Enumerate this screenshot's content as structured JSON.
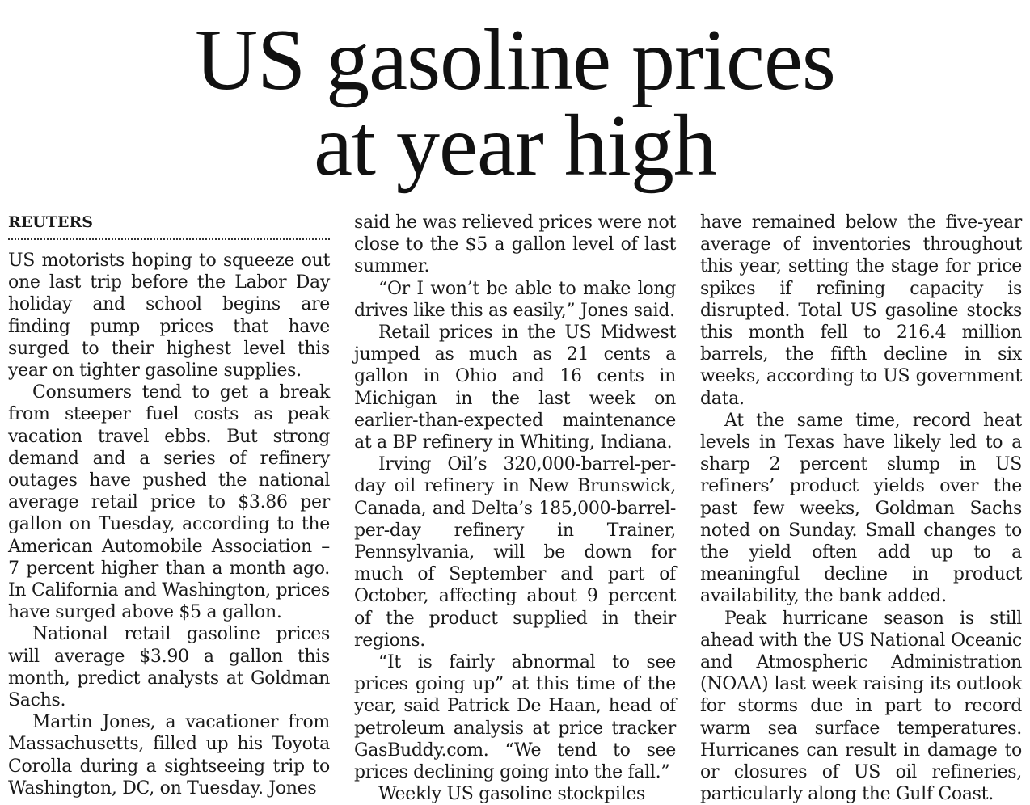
{
  "article": {
    "headline_line1": "US gasoline prices",
    "headline_line2": "at year high",
    "byline": "REUTERS",
    "col1": [
      "US motorists hoping to squeeze out one last trip before the Labor Day holiday and school begins are finding pump prices that have surged to their highest level this year on tighter gasoline supplies.",
      "Consumers tend to get a break from steeper fuel costs as peak vacation travel ebbs. But strong demand and a series of refinery outages have pushed the national average retail price to $3.86 per gallon on Tuesday, according to the American Automobile Association – 7 percent higher than a month ago. In California and Washington, prices have surged above $5 a gallon.",
      "National retail gasoline prices will average $3.90 a gallon this month, predict analysts at Goldman Sachs.",
      "Martin Jones, a vacationer from Massachusetts, filled up his Toyota Corolla during a sightseeing trip to Washington, DC, on Tuesday. Jones"
    ],
    "col2": [
      "said he was relieved prices were not close to the $5 a gallon level of last summer.",
      "“Or I won’t be able to make long drives like this as easily,” Jones said.",
      "Retail prices in the US Midwest jumped as much as 21 cents a gallon in Ohio and 16 cents in Michigan in the last week on earlier-than-expected maintenance at a BP refinery in Whiting, Indiana.",
      "Irving Oil’s 320,000-barrel-per-day oil refinery in New Brunswick, Canada, and Delta’s 185,000-barrel-per-day refinery in Trainer, Pennsylvania, will be down for much of September and part of October, affecting about 9 percent of the product supplied in their regions.",
      "“It is fairly abnormal to see prices going up” at this time of the year, said Patrick De Haan, head of petroleum analysis at price tracker GasBuddy.com. “We tend to see prices declining going into the fall.”",
      "Weekly US gasoline stockpiles"
    ],
    "col3": [
      "have remained below the five-year average of inventories throughout this year, setting the stage for price spikes if refining capacity is disrupted. Total US gasoline stocks this month fell to 216.4 million barrels, the fifth decline in six weeks, according to US government data.",
      "At the same time, record heat levels in Texas have likely led to a sharp 2 percent slump in US refiners’ product yields over the past few weeks, Goldman Sachs noted on Sunday. Small changes to the yield often add up to a meaningful decline in product availability, the bank added.",
      "Peak hurricane season is still ahead with the US National Oceanic and Atmospheric Administration (NOAA) last week raising its outlook for storms due in part to record warm sea surface temperatures. Hurricanes can result in damage to or closures of US oil refineries, particularly along the Gulf Coast."
    ]
  }
}
